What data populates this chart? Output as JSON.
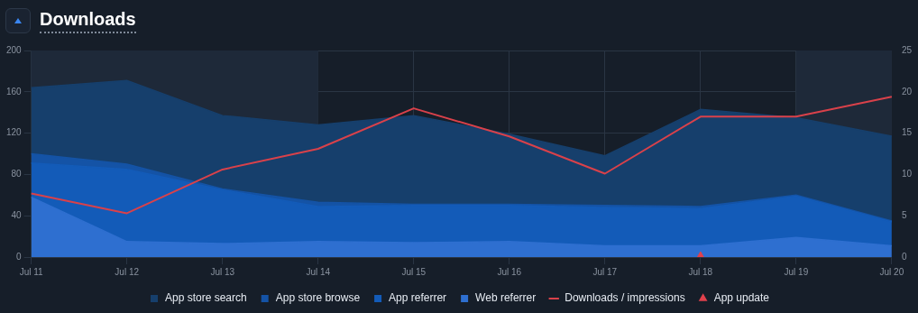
{
  "chart_data": {
    "type": "area",
    "title": "Downloads",
    "stacked": true,
    "grid": true,
    "legend": "bottom",
    "categories": [
      "Jul 11",
      "Jul 12",
      "Jul 13",
      "Jul 14",
      "Jul 15",
      "Jul 16",
      "Jul 17",
      "Jul 18",
      "Jul 19",
      "Jul 20"
    ],
    "series": [
      {
        "name": "Web referrer",
        "color": "#2e6fd0",
        "values": [
          58,
          15,
          13,
          15,
          14,
          15,
          11,
          11,
          19,
          11
        ]
      },
      {
        "name": "App referrer",
        "color": "#135bb8",
        "values": [
          33,
          70,
          52,
          34,
          36,
          35,
          37,
          36,
          40,
          23
        ]
      },
      {
        "name": "App store browse",
        "color": "#1453a6",
        "values": [
          9,
          5,
          1,
          4,
          1,
          1,
          2,
          2,
          1,
          1
        ]
      },
      {
        "name": "App store search",
        "color": "#163f6c",
        "values": [
          64,
          81,
          71,
          75,
          86,
          68,
          48,
          94,
          75,
          82
        ]
      },
      {
        "name": "Downloads / impressions",
        "type": "line",
        "axis": "y2",
        "color": "#d9414a",
        "marker": "none",
        "values": [
          7.7,
          5.3,
          10.6,
          13.1,
          18.0,
          14.6,
          10.1,
          17.0,
          17.0,
          19.4
        ]
      },
      {
        "name": "App update",
        "type": "scatter",
        "color": "#e0414c",
        "marker": "triangle",
        "x": [
          "Jul 18"
        ],
        "values": [
          0
        ]
      }
    ],
    "ylim": [
      0,
      200
    ],
    "yticks": [
      0,
      40,
      80,
      120,
      160,
      200
    ],
    "y2lim": [
      0,
      25
    ],
    "y2ticks": [
      0,
      5,
      10,
      15,
      20,
      25
    ],
    "bands": [
      {
        "axis": "x",
        "from": "Jul 11",
        "to": "Jul 14",
        "color": "#1e2939"
      },
      {
        "axis": "x",
        "from": "Jul 19",
        "to": "Jul 20",
        "color": "#1e2939"
      }
    ]
  }
}
